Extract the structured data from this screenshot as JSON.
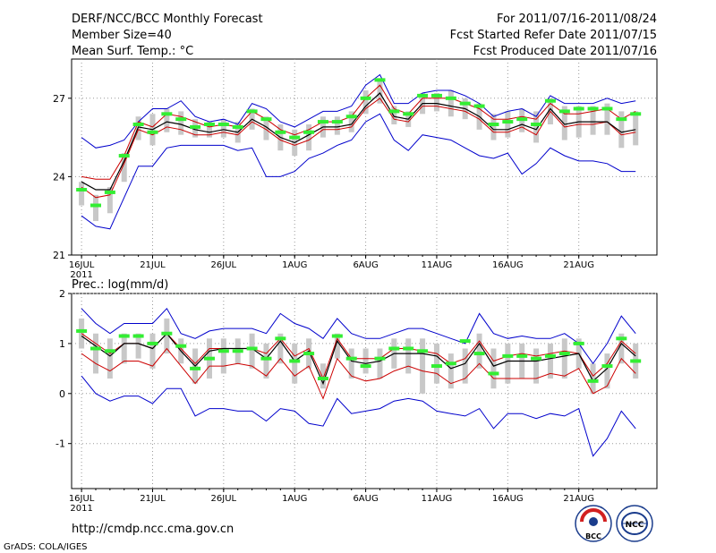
{
  "header": {
    "title": "DERF/NCC/BCC Monthly Forecast",
    "member_size": "Member Size=40",
    "variable": "Mean Surf. Temp.: °C",
    "period": "For 2011/07/16-2011/08/24",
    "started": "Fcst Started Refer Date 2011/07/15",
    "produced": "Fcst Produced Date 2011/07/16"
  },
  "footer": {
    "url": "http://cmdp.ncc.cma.gov.cn",
    "grads": "GrADS: COLA/IGES",
    "logo_bcc": "BCC",
    "logo_ncc": "NCC"
  },
  "colors": {
    "envelope": "#0000cc",
    "spread": "#cc0000",
    "mean": "#000000",
    "box": "#c8c8c8",
    "marker": "#33ee33",
    "grid": "#999999"
  },
  "chart_data": [
    {
      "type": "line",
      "title": "Mean Surf. Temp.: °C",
      "x_tick_labels": [
        "16JUL",
        "21JUL",
        "26JUL",
        "1AUG",
        "6AUG",
        "11AUG",
        "16AUG",
        "21AUG"
      ],
      "x_tick_days": [
        1,
        6,
        11,
        16,
        21,
        26,
        31,
        36
      ],
      "year_label": "2011",
      "ylim": [
        21,
        28.5
      ],
      "y_ticks": [
        21,
        24,
        27
      ],
      "y_tick_labels": [
        "21",
        "24",
        "27"
      ],
      "days": [
        1,
        2,
        3,
        4,
        5,
        6,
        7,
        8,
        9,
        10,
        11,
        12,
        13,
        14,
        15,
        16,
        17,
        18,
        19,
        20,
        21,
        22,
        23,
        24,
        25,
        26,
        27,
        28,
        29,
        30,
        31,
        32,
        33,
        34,
        35,
        36,
        37,
        38,
        39,
        40
      ],
      "series": [
        {
          "name": "max",
          "values": [
            25.5,
            25.1,
            25.2,
            25.4,
            26.1,
            26.6,
            26.6,
            26.9,
            26.3,
            26.1,
            26.2,
            26.0,
            26.8,
            26.6,
            26.1,
            25.9,
            26.2,
            26.5,
            26.5,
            26.7,
            27.5,
            27.9,
            26.8,
            26.8,
            27.2,
            27.3,
            27.3,
            27.1,
            26.8,
            26.3,
            26.5,
            26.6,
            26.3,
            27.1,
            26.8,
            26.8,
            26.8,
            27.0,
            26.8,
            26.9
          ]
        },
        {
          "name": "upper",
          "values": [
            24.0,
            23.9,
            23.9,
            24.8,
            26.1,
            25.9,
            26.4,
            26.3,
            26.1,
            25.9,
            26.0,
            25.9,
            26.5,
            26.2,
            25.8,
            25.6,
            25.8,
            26.1,
            26.1,
            26.3,
            27.0,
            27.5,
            26.6,
            26.4,
            27.0,
            27.0,
            27.0,
            26.8,
            26.6,
            26.2,
            26.2,
            26.3,
            26.2,
            26.8,
            26.4,
            26.4,
            26.5,
            26.6,
            26.2,
            26.5
          ]
        },
        {
          "name": "mean",
          "values": [
            23.8,
            23.5,
            23.5,
            24.6,
            25.9,
            25.8,
            26.1,
            26.0,
            25.8,
            25.7,
            25.8,
            25.7,
            26.2,
            25.9,
            25.5,
            25.3,
            25.6,
            25.9,
            25.9,
            26.0,
            26.7,
            27.2,
            26.3,
            26.2,
            26.8,
            26.8,
            26.7,
            26.6,
            26.3,
            25.8,
            25.8,
            26.0,
            25.8,
            26.6,
            26.0,
            26.1,
            26.1,
            26.1,
            25.7,
            25.8
          ]
        },
        {
          "name": "lower",
          "values": [
            23.6,
            23.2,
            23.3,
            24.5,
            25.8,
            25.6,
            25.9,
            25.8,
            25.6,
            25.6,
            25.7,
            25.6,
            26.1,
            25.8,
            25.4,
            25.2,
            25.4,
            25.8,
            25.8,
            25.9,
            26.6,
            27.0,
            26.2,
            26.1,
            26.7,
            26.7,
            26.6,
            26.5,
            26.2,
            25.7,
            25.7,
            25.9,
            25.6,
            26.5,
            25.9,
            26.0,
            26.0,
            26.1,
            25.6,
            25.7
          ]
        },
        {
          "name": "min",
          "values": [
            22.5,
            22.1,
            22.0,
            23.2,
            24.4,
            24.4,
            25.1,
            25.2,
            25.2,
            25.2,
            25.2,
            25.0,
            25.1,
            24.0,
            24.0,
            24.2,
            24.7,
            24.9,
            25.2,
            25.4,
            26.1,
            26.4,
            25.4,
            25.0,
            25.6,
            25.5,
            25.4,
            25.1,
            24.8,
            24.7,
            24.9,
            24.1,
            24.5,
            25.1,
            24.8,
            24.6,
            24.6,
            24.5,
            24.2,
            24.2
          ]
        },
        {
          "name": "box_high",
          "values": [
            23.8,
            23.3,
            23.6,
            24.9,
            26.3,
            26.4,
            26.6,
            26.5,
            26.2,
            26.1,
            26.2,
            26.1,
            26.6,
            26.3,
            26.0,
            25.8,
            26.0,
            26.3,
            26.3,
            26.5,
            27.3,
            27.7,
            26.7,
            26.5,
            27.2,
            27.2,
            27.3,
            27.0,
            26.8,
            26.4,
            26.5,
            26.6,
            26.5,
            27.0,
            26.7,
            26.7,
            26.7,
            26.8,
            26.5,
            26.5
          ]
        },
        {
          "name": "box_low",
          "values": [
            22.9,
            22.3,
            22.6,
            23.8,
            25.4,
            25.2,
            25.7,
            25.6,
            25.5,
            25.5,
            25.5,
            25.3,
            25.8,
            25.4,
            25.0,
            24.8,
            25.0,
            25.5,
            25.6,
            25.7,
            26.4,
            26.8,
            26.0,
            25.9,
            26.4,
            26.5,
            26.3,
            26.2,
            25.8,
            25.4,
            25.5,
            25.7,
            25.3,
            26.0,
            25.4,
            25.5,
            25.6,
            25.6,
            25.1,
            25.2
          ]
        },
        {
          "name": "markers",
          "values": [
            23.5,
            22.9,
            23.4,
            24.8,
            26.0,
            25.7,
            26.4,
            26.2,
            25.9,
            26.0,
            26.0,
            25.9,
            26.5,
            26.2,
            25.7,
            25.5,
            25.7,
            26.1,
            26.1,
            26.3,
            27.0,
            27.7,
            26.5,
            26.4,
            27.1,
            27.1,
            27.0,
            26.8,
            26.7,
            26.0,
            26.1,
            26.2,
            26.0,
            26.9,
            26.5,
            26.6,
            26.6,
            26.6,
            26.2,
            26.4
          ]
        }
      ]
    },
    {
      "type": "line",
      "title": "Prec.: log(mm/d)",
      "x_tick_labels": [
        "16JUL",
        "21JUL",
        "26JUL",
        "1AUG",
        "6AUG",
        "11AUG",
        "16AUG",
        "21AUG"
      ],
      "x_tick_days": [
        1,
        6,
        11,
        16,
        21,
        26,
        31,
        36
      ],
      "year_label": "2011",
      "ylim": [
        -1.9,
        2
      ],
      "y_ticks": [
        -1,
        0,
        1,
        2
      ],
      "y_tick_labels": [
        "-1",
        "0",
        "1",
        "2"
      ],
      "days": [
        1,
        2,
        3,
        4,
        5,
        6,
        7,
        8,
        9,
        10,
        11,
        12,
        13,
        14,
        15,
        16,
        17,
        18,
        19,
        20,
        21,
        22,
        23,
        24,
        25,
        26,
        27,
        28,
        29,
        30,
        31,
        32,
        33,
        34,
        35,
        36,
        37,
        38,
        39,
        40
      ],
      "series": [
        {
          "name": "max",
          "values": [
            1.7,
            1.4,
            1.2,
            1.4,
            1.4,
            1.4,
            1.7,
            1.2,
            1.1,
            1.25,
            1.3,
            1.3,
            1.3,
            1.2,
            1.6,
            1.4,
            1.3,
            1.1,
            1.5,
            1.2,
            1.1,
            1.1,
            1.2,
            1.3,
            1.3,
            1.2,
            1.1,
            1.0,
            1.6,
            1.2,
            1.1,
            1.15,
            1.1,
            1.1,
            1.2,
            1.0,
            0.6,
            1.0,
            1.55,
            1.2
          ]
        },
        {
          "name": "upper",
          "values": [
            1.2,
            1.0,
            0.8,
            1.0,
            1.0,
            0.9,
            1.2,
            0.9,
            0.6,
            0.9,
            0.9,
            0.9,
            0.9,
            0.8,
            1.1,
            0.75,
            0.9,
            0.3,
            1.1,
            0.7,
            0.7,
            0.7,
            0.9,
            0.9,
            0.85,
            0.8,
            0.6,
            0.7,
            1.05,
            0.65,
            0.75,
            0.8,
            0.75,
            0.8,
            0.85,
            0.8,
            0.35,
            0.6,
            1.05,
            0.8
          ]
        },
        {
          "name": "mean",
          "values": [
            1.15,
            0.95,
            0.75,
            1.0,
            1.0,
            0.9,
            1.2,
            0.85,
            0.55,
            0.85,
            0.9,
            0.9,
            0.9,
            0.7,
            1.05,
            0.65,
            0.85,
            0.2,
            1.05,
            0.65,
            0.6,
            0.65,
            0.8,
            0.8,
            0.8,
            0.75,
            0.5,
            0.6,
            1.0,
            0.55,
            0.65,
            0.65,
            0.65,
            0.7,
            0.75,
            0.8,
            0.25,
            0.5,
            1.0,
            0.75
          ]
        },
        {
          "name": "lower",
          "values": [
            0.8,
            0.6,
            0.45,
            0.65,
            0.65,
            0.55,
            0.9,
            0.55,
            0.2,
            0.55,
            0.55,
            0.6,
            0.55,
            0.35,
            0.7,
            0.35,
            0.55,
            -0.1,
            0.7,
            0.35,
            0.25,
            0.3,
            0.45,
            0.55,
            0.45,
            0.4,
            0.2,
            0.3,
            0.6,
            0.3,
            0.3,
            0.3,
            0.3,
            0.4,
            0.35,
            0.5,
            0.0,
            0.15,
            0.7,
            0.4
          ]
        },
        {
          "name": "min",
          "values": [
            0.35,
            0.0,
            -0.15,
            -0.05,
            -0.05,
            -0.2,
            0.1,
            0.1,
            -0.45,
            -0.3,
            -0.3,
            -0.35,
            -0.35,
            -0.55,
            -0.3,
            -0.35,
            -0.6,
            -0.65,
            -0.1,
            -0.4,
            -0.35,
            -0.3,
            -0.15,
            -0.1,
            -0.15,
            -0.35,
            -0.4,
            -0.45,
            -0.3,
            -0.7,
            -0.4,
            -0.4,
            -0.5,
            -0.4,
            -0.45,
            -0.3,
            -1.25,
            -0.9,
            -0.35,
            -0.7
          ]
        },
        {
          "name": "box_high",
          "values": [
            1.5,
            1.2,
            1.1,
            1.2,
            1.2,
            1.2,
            1.5,
            1.1,
            0.9,
            1.1,
            1.1,
            1.1,
            1.2,
            1.0,
            1.2,
            1.0,
            1.1,
            0.6,
            1.2,
            0.9,
            0.9,
            0.9,
            1.1,
            1.1,
            1.1,
            1.0,
            0.8,
            0.9,
            1.2,
            0.9,
            1.0,
            1.0,
            0.9,
            1.0,
            1.1,
            1.1,
            0.6,
            0.8,
            1.2,
            1.0
          ]
        },
        {
          "name": "box_low",
          "values": [
            0.9,
            0.4,
            0.3,
            0.6,
            0.7,
            0.5,
            0.8,
            0.6,
            0.2,
            0.3,
            0.4,
            0.6,
            0.5,
            0.3,
            0.6,
            0.2,
            0.5,
            0.1,
            0.7,
            0.3,
            0.4,
            0.3,
            0.5,
            0.4,
            0.0,
            0.2,
            0.1,
            0.2,
            0.5,
            0.1,
            0.2,
            0.3,
            0.2,
            0.3,
            0.3,
            0.5,
            0.0,
            0.1,
            0.6,
            0.3
          ]
        },
        {
          "name": "markers",
          "values": [
            1.25,
            0.9,
            0.85,
            1.15,
            1.15,
            1.0,
            1.2,
            0.95,
            0.5,
            0.7,
            0.85,
            0.85,
            0.9,
            0.7,
            1.1,
            0.65,
            0.8,
            0.3,
            1.15,
            0.7,
            0.55,
            0.7,
            0.9,
            0.9,
            0.85,
            0.55,
            0.6,
            1.05,
            0.8,
            0.4,
            0.75,
            0.75,
            0.7,
            0.75,
            0.8,
            1.0,
            0.25,
            0.55,
            1.1,
            0.65
          ]
        }
      ]
    }
  ]
}
